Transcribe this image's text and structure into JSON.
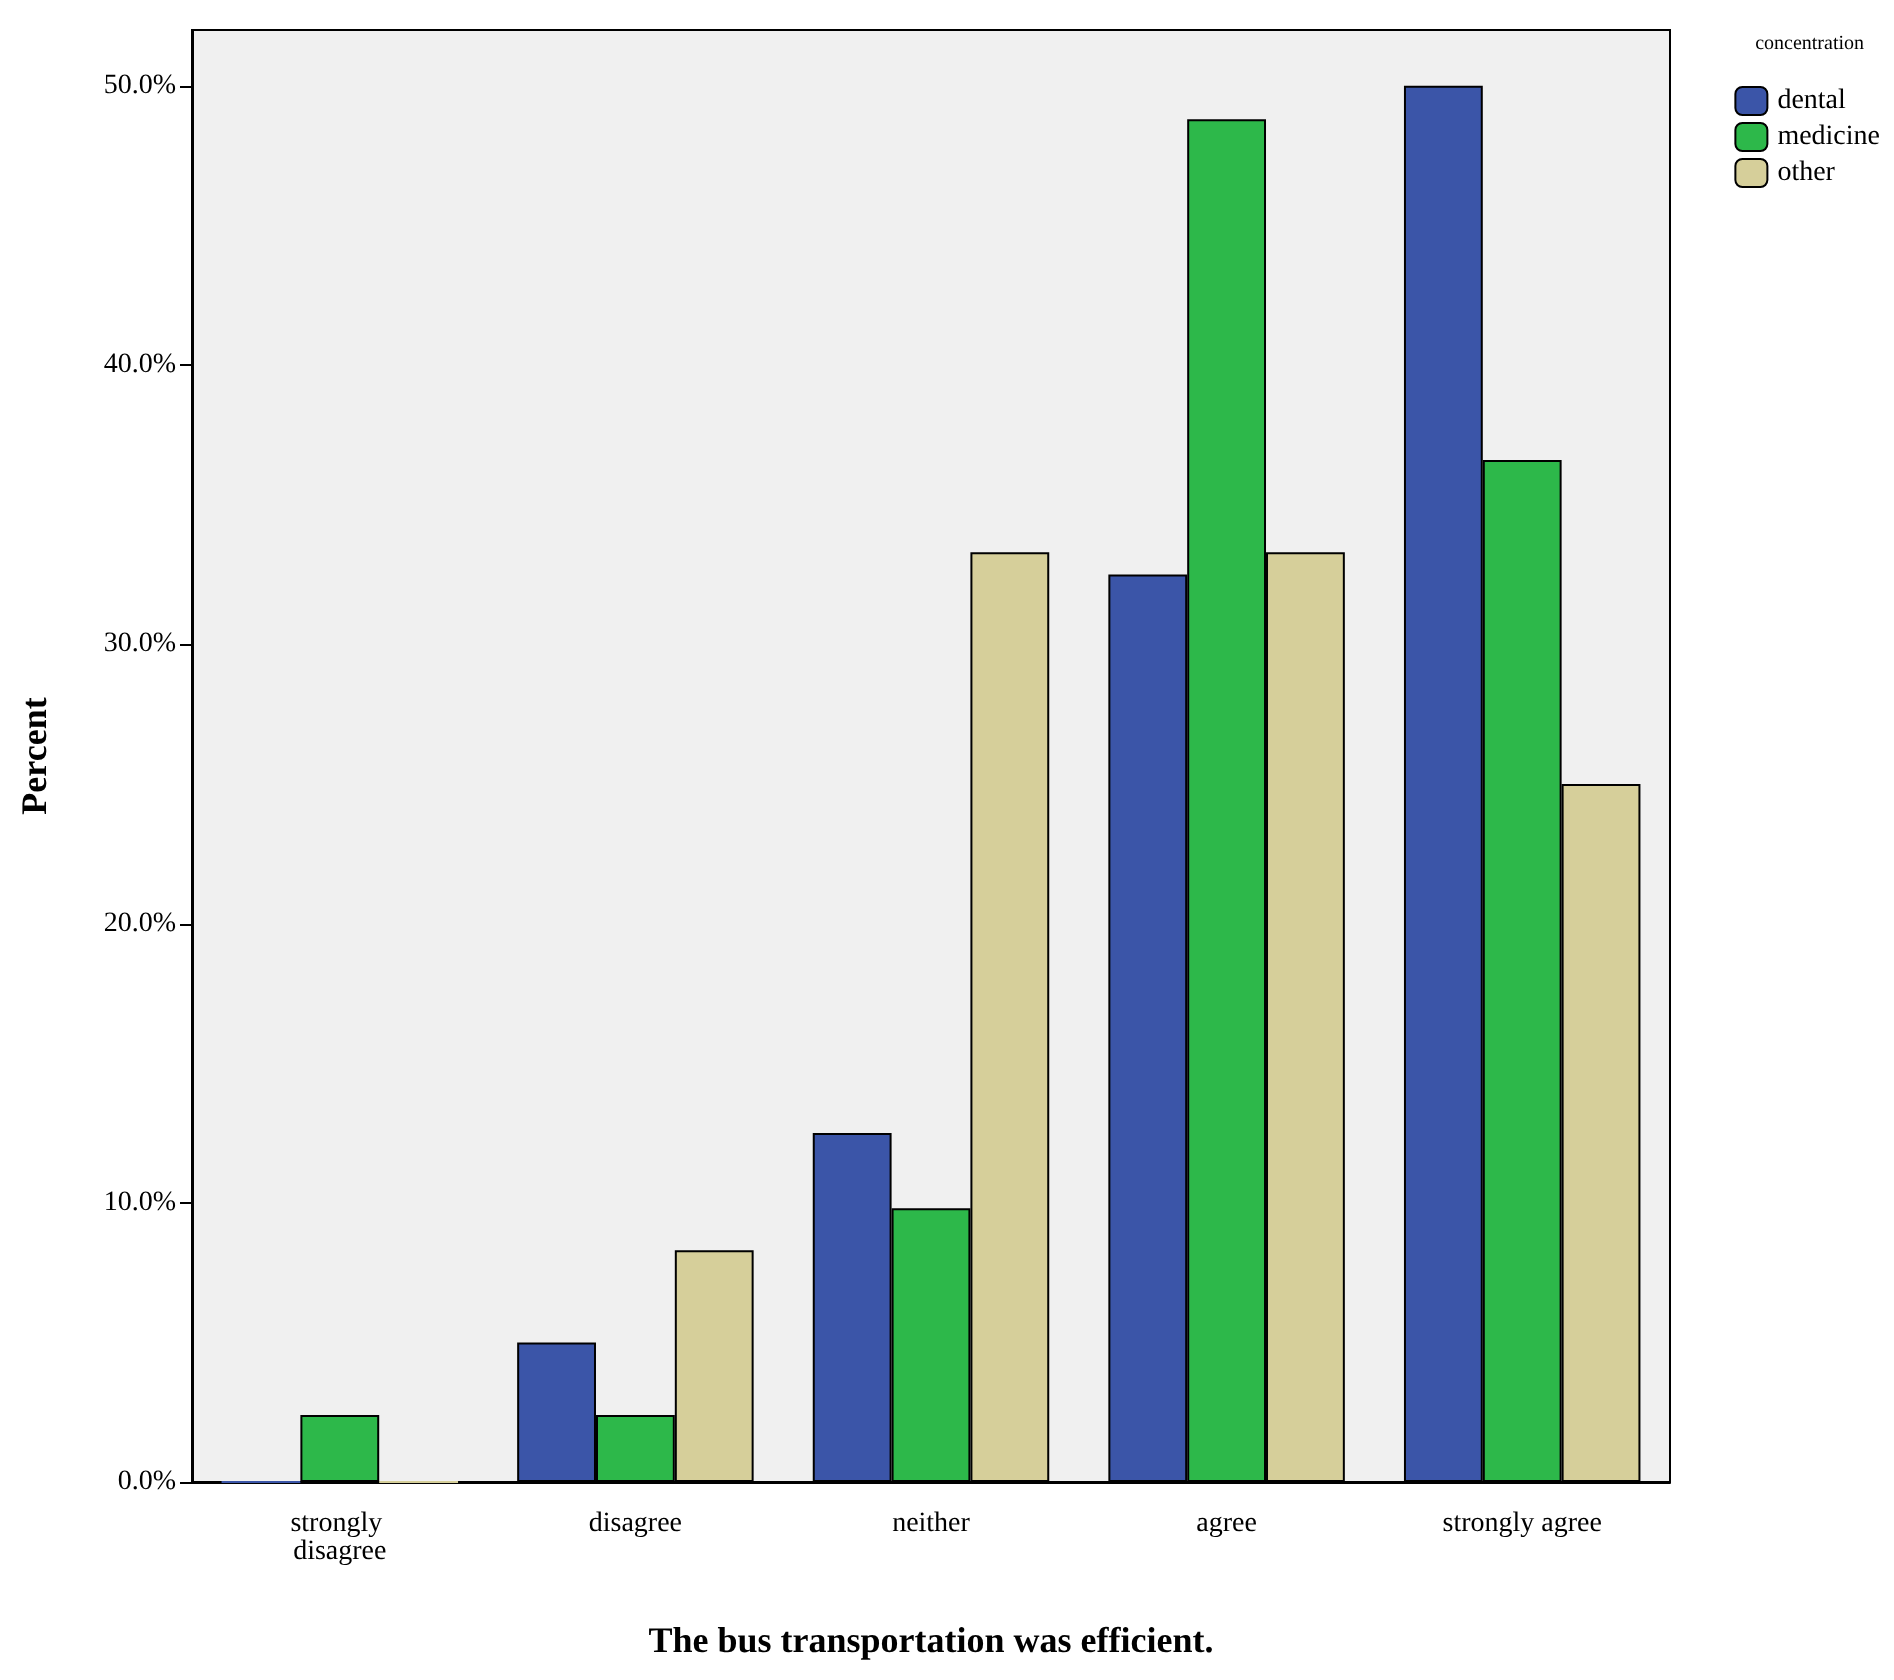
{
  "chart_data": {
    "type": "bar",
    "xlabel": "The bus transportation was efficient.",
    "ylabel": "Percent",
    "legend_title": "concentration",
    "legend": "top right",
    "grid": false,
    "categories": [
      "strongly disagree",
      "disagree",
      "neither",
      "agree",
      "strongly agree"
    ],
    "series": [
      {
        "name": "dental",
        "color": "#3b55a8",
        "values": [
          0,
          5.0,
          12.5,
          32.5,
          50.0
        ]
      },
      {
        "name": "medicine",
        "color": "#2db84a",
        "values": [
          2.4,
          2.4,
          9.8,
          48.8,
          36.6
        ]
      },
      {
        "name": "other",
        "color": "#d6cf9a",
        "values": [
          0,
          8.3,
          33.3,
          33.3,
          25.0
        ]
      }
    ],
    "ylim": [
      0,
      52
    ],
    "yticks": [
      {
        "value": 0,
        "label": "0.0%"
      },
      {
        "value": 10,
        "label": "10.0%"
      },
      {
        "value": 20,
        "label": "20.0%"
      },
      {
        "value": 30,
        "label": "30.0%"
      },
      {
        "value": 40,
        "label": "40.0%"
      },
      {
        "value": 50,
        "label": "50.0%"
      }
    ]
  }
}
